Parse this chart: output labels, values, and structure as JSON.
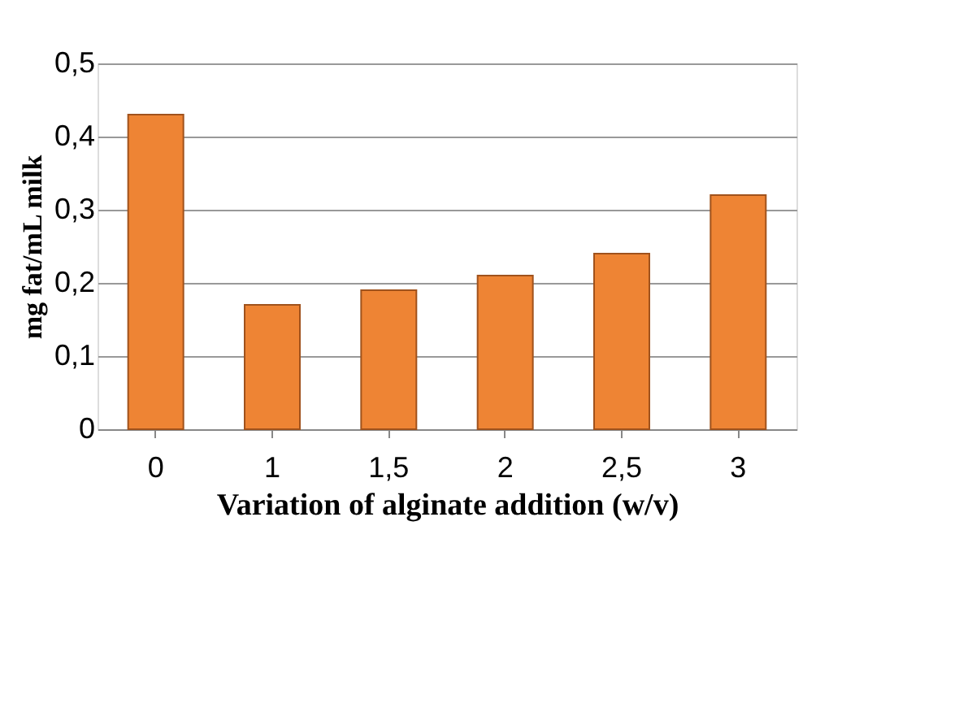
{
  "chart_data": {
    "type": "bar",
    "xlabel": "Variation of alginate addition (w/v)",
    "ylabel": "mg fat/mL  milk",
    "categories": [
      "0",
      "1",
      "1,5",
      "2",
      "2,5",
      "3"
    ],
    "values": [
      0.43,
      0.17,
      0.19,
      0.21,
      0.24,
      0.32
    ],
    "color": "#ee8434",
    "ylim": [
      0,
      0.5
    ],
    "yticks": [
      {
        "value": 0,
        "label": "0"
      },
      {
        "value": 0.1,
        "label": "0,1"
      },
      {
        "value": 0.2,
        "label": "0,2"
      },
      {
        "value": 0.3,
        "label": "0,3"
      },
      {
        "value": 0.4,
        "label": "0,4"
      },
      {
        "value": 0.5,
        "label": "0,5"
      }
    ],
    "grid": "y"
  }
}
